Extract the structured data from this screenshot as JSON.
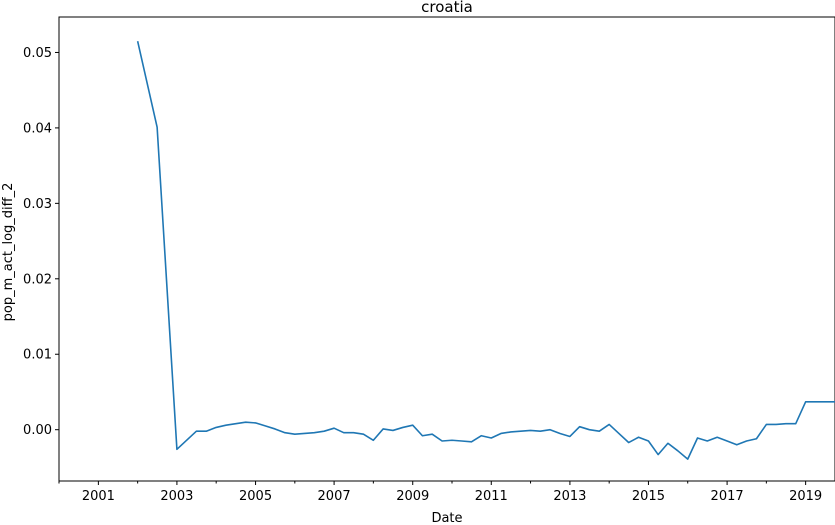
{
  "chart_data": {
    "type": "line",
    "title": "croatia",
    "xlabel": "Date",
    "ylabel": "pop_m_act_log_diff_2",
    "xlim": [
      "2000-01-01",
      "2019-10-01"
    ],
    "ylim": [
      -0.0068,
      0.0547
    ],
    "x_ticks": [
      "2001",
      "2003",
      "2005",
      "2007",
      "2009",
      "2011",
      "2013",
      "2015",
      "2017",
      "2019"
    ],
    "y_ticks": [
      "0.00",
      "0.01",
      "0.02",
      "0.03",
      "0.04",
      "0.05"
    ],
    "grid": false,
    "color": "#1f77b4",
    "series": [
      {
        "x": [
          "2002-01-01",
          "2002-07-01",
          "2003-01-01",
          "2003-07-01",
          "2003-10-01",
          "2004-01-01",
          "2004-04-01",
          "2004-07-01",
          "2004-10-01",
          "2005-01-01",
          "2005-04-01",
          "2005-07-01",
          "2005-10-01",
          "2006-01-01",
          "2006-04-01",
          "2006-07-01",
          "2006-10-01",
          "2007-01-01",
          "2007-04-01",
          "2007-07-01",
          "2007-10-01",
          "2008-01-01",
          "2008-04-01",
          "2008-07-01",
          "2008-10-01",
          "2009-01-01",
          "2009-04-01",
          "2009-07-01",
          "2009-10-01",
          "2010-01-01",
          "2010-04-01",
          "2010-07-01",
          "2010-10-01",
          "2011-01-01",
          "2011-04-01",
          "2011-07-01",
          "2011-10-01",
          "2012-01-01",
          "2012-04-01",
          "2012-07-01",
          "2012-10-01",
          "2013-01-01",
          "2013-04-01",
          "2013-07-01",
          "2013-10-01",
          "2014-01-01",
          "2014-04-01",
          "2014-07-01",
          "2014-10-01",
          "2015-01-01",
          "2015-04-01",
          "2015-07-01",
          "2015-10-01",
          "2016-01-01",
          "2016-04-01",
          "2016-07-01",
          "2016-10-01",
          "2017-01-01",
          "2017-04-01",
          "2017-07-01",
          "2017-10-01",
          "2018-01-01",
          "2018-04-01",
          "2018-07-01",
          "2018-10-01",
          "2019-01-01",
          "2019-04-01",
          "2019-07-01",
          "2019-10-01"
        ],
        "y": [
          0.0515,
          0.0401,
          -0.0026,
          -0.0002,
          -0.0002,
          0.0003,
          0.0006,
          0.0008,
          0.001,
          0.0009,
          0.0005,
          0.0001,
          -0.0004,
          -0.0006,
          -0.0005,
          -0.0004,
          -0.0002,
          0.0002,
          -0.0004,
          -0.0004,
          -0.0006,
          -0.0014,
          0.0001,
          -0.0001,
          0.0003,
          0.0006,
          -0.0008,
          -0.0006,
          -0.0015,
          -0.0014,
          -0.0015,
          -0.0016,
          -0.0008,
          -0.0011,
          -0.0005,
          -0.0003,
          -0.0002,
          -0.0001,
          -0.0002,
          0.0,
          -0.0005,
          -0.0009,
          0.0004,
          0.0,
          -0.0002,
          0.0007,
          -0.0005,
          -0.0017,
          -0.001,
          -0.0015,
          -0.0033,
          -0.0018,
          -0.0028,
          -0.0039,
          -0.0011,
          -0.0015,
          -0.001,
          -0.0015,
          -0.002,
          -0.0015,
          -0.0012,
          0.0007,
          0.0007,
          0.0008,
          0.0008,
          0.0037,
          0.0037,
          0.0037,
          0.0037
        ]
      }
    ]
  }
}
